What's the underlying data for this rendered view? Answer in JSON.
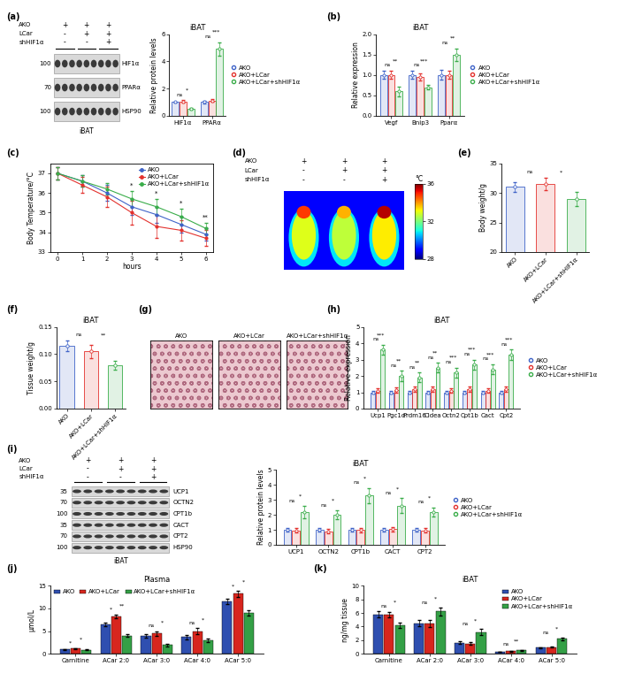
{
  "chart_data": [
    {
      "type": "blot",
      "panel": "(a)",
      "conditions": [
        {
          "name": "AKO",
          "signs": [
            "+",
            "+",
            "+"
          ]
        },
        {
          "name": "LCar",
          "signs": [
            "-",
            "+",
            "+"
          ]
        },
        {
          "name": "shHIF1α",
          "signs": [
            "-",
            "-",
            "+"
          ]
        }
      ],
      "bands": [
        {
          "name": "HIF1α",
          "kDa": 100
        },
        {
          "name": "PPARα",
          "kDa": 70
        },
        {
          "name": "HSP90",
          "kDa": 100
        }
      ],
      "caption": "iBAT"
    },
    {
      "type": "bar",
      "title": "iBAT",
      "y_label": "Relative protein levels",
      "marker": "o",
      "legend": "right",
      "categories": [
        "HIF1α",
        "PPARα"
      ],
      "series": [
        {
          "name": "AKO",
          "color": "#3f63c8",
          "values": [
            1.0,
            1.0
          ],
          "errors": [
            0.05,
            0.08
          ]
        },
        {
          "name": "AKO+LCar",
          "color": "#e3312d",
          "values": [
            1.05,
            1.1
          ],
          "errors": [
            0.08,
            0.1
          ]
        },
        {
          "name": "AKO+LCar+shHIF1α",
          "color": "#3aad4a",
          "values": [
            0.5,
            4.9
          ],
          "errors": [
            0.05,
            0.5
          ]
        }
      ],
      "significance": [
        [
          "ns",
          "*"
        ],
        [
          "ns",
          "***"
        ]
      ],
      "ylim": [
        0,
        6
      ],
      "yticks": [
        0,
        2,
        4,
        6
      ]
    },
    {
      "type": "bar",
      "panel": "(b)",
      "title": "iBAT",
      "y_label": "Relative expression",
      "marker": "o",
      "legend": "right",
      "categories": [
        "Vegf",
        "Bnip3",
        "Pparα"
      ],
      "series": [
        {
          "name": "AKO",
          "color": "#3f63c8",
          "values": [
            1.0,
            1.0,
            1.0
          ],
          "errors": [
            0.1,
            0.1,
            0.12
          ]
        },
        {
          "name": "AKO+LCar",
          "color": "#e3312d",
          "values": [
            1.0,
            0.95,
            1.0
          ],
          "errors": [
            0.1,
            0.08,
            0.1
          ]
        },
        {
          "name": "AKO+LCar+shHIF1α",
          "color": "#3aad4a",
          "values": [
            0.6,
            0.7,
            1.5
          ],
          "errors": [
            0.12,
            0.05,
            0.15
          ]
        }
      ],
      "significance": [
        [
          "ns",
          "**"
        ],
        [
          "ns",
          "***"
        ],
        [
          "ns",
          "**"
        ]
      ],
      "ylim": [
        0,
        2
      ],
      "yticks": [
        {
          "value": 0,
          "label": "0.0"
        },
        0.5,
        {
          "value": 1,
          "label": "1.0"
        },
        1.5,
        {
          "value": 2,
          "label": "2.0"
        }
      ]
    },
    {
      "type": "line",
      "panel": "(c)",
      "x_label": "hours",
      "y_label": "Body Temperature/°C",
      "marker": "o",
      "legend": "upper right",
      "x": [
        0,
        1,
        2,
        3,
        4,
        5,
        6
      ],
      "series": [
        {
          "name": "AKO",
          "color": "#3f63c8",
          "values": [
            37.0,
            36.6,
            36.0,
            35.3,
            34.9,
            34.4,
            33.9
          ],
          "errors": [
            0.3,
            0.3,
            0.4,
            0.4,
            0.4,
            0.4,
            0.3
          ]
        },
        {
          "name": "AKO+LCar",
          "color": "#e3312d",
          "values": [
            37.0,
            36.4,
            35.8,
            35.0,
            34.3,
            34.1,
            33.7
          ],
          "errors": [
            0.3,
            0.4,
            0.5,
            0.6,
            0.6,
            0.5,
            0.4
          ]
        },
        {
          "name": "AKO+LCar+shHIF1α",
          "color": "#3aad4a",
          "values": [
            37.0,
            36.6,
            36.2,
            35.7,
            35.3,
            34.8,
            34.2
          ],
          "errors": [
            0.3,
            0.3,
            0.3,
            0.4,
            0.4,
            0.4,
            0.3
          ]
        }
      ],
      "significance": {
        "x": [
          3,
          4,
          5,
          6
        ],
        "labels": [
          "*",
          "*",
          "*",
          "**"
        ]
      },
      "xlim": [
        0,
        6
      ],
      "xticks": [
        0,
        1,
        2,
        3,
        4,
        5,
        6
      ],
      "ylim": [
        33,
        37.5
      ],
      "yticks": [
        33,
        34,
        35,
        36,
        37
      ]
    },
    {
      "type": "thermal_image",
      "panel": "(d)",
      "conditions": [
        {
          "name": "AKO",
          "signs": [
            "+",
            "+",
            "+"
          ]
        },
        {
          "name": "LCar",
          "signs": [
            "-",
            "+",
            "+"
          ]
        },
        {
          "name": "shHIF1α",
          "signs": [
            "-",
            "-",
            "+"
          ]
        }
      ],
      "colorbar_label": "°C",
      "color_range": [
        28,
        36
      ],
      "color_ticks": [
        28,
        32,
        36
      ]
    },
    {
      "type": "bar",
      "panel": "(e)",
      "y_label": "Body weight/g",
      "marker": "o",
      "categories": [
        "AKO",
        "AKO+LCar",
        "AKO+LCar+shHIF1α"
      ],
      "values": [
        31.0,
        31.5,
        29.0
      ],
      "errors": [
        0.8,
        1.0,
        1.2
      ],
      "colors": [
        "#3f63c8",
        "#e3312d",
        "#3aad4a"
      ],
      "significance": [
        "ns",
        "*"
      ],
      "ylim": [
        20,
        35
      ],
      "yticks": [
        20,
        25,
        30,
        35
      ]
    },
    {
      "type": "bar",
      "panel": "(f)",
      "title": "iBAT",
      "y_label": "Tissue weight/g",
      "marker": "o",
      "categories": [
        "AKO",
        "AKO+LCar",
        "AKO+LCar+shHIF1α"
      ],
      "values": [
        0.115,
        0.105,
        0.08
      ],
      "errors": [
        0.01,
        0.012,
        0.008
      ],
      "colors": [
        "#3f63c8",
        "#e3312d",
        "#3aad4a"
      ],
      "significance": [
        "ns",
        "**"
      ],
      "ylim": [
        0,
        0.15
      ],
      "yticks": [
        {
          "value": 0,
          "label": "0.00"
        },
        0.05,
        {
          "value": 0.1,
          "label": "0.10"
        },
        0.15
      ]
    },
    {
      "type": "histology",
      "panel": "(g)",
      "labels": [
        "AKO",
        "AKO+LCar",
        "AKO+LCar+shHIF1α"
      ]
    },
    {
      "type": "bar",
      "panel": "(h)",
      "title": "iBAT",
      "y_label": "Relative expression",
      "marker": "o",
      "legend": "right",
      "categories": [
        "Ucp1",
        "Pgc1α",
        "Prdm16",
        "Cidea",
        "Octn2",
        "Cpt1b",
        "Cact",
        "Cpt2"
      ],
      "series": [
        {
          "name": "AKO",
          "color": "#3f63c8",
          "values": [
            1.0,
            1.0,
            1.0,
            1.0,
            1.0,
            1.0,
            1.0,
            1.0
          ],
          "errors": [
            0.1,
            0.1,
            0.1,
            0.1,
            0.1,
            0.1,
            0.1,
            0.1
          ]
        },
        {
          "name": "AKO+LCar",
          "color": "#e3312d",
          "values": [
            1.1,
            1.15,
            1.2,
            1.2,
            1.1,
            1.2,
            1.1,
            1.2
          ],
          "errors": [
            0.15,
            0.15,
            0.15,
            0.15,
            0.15,
            0.15,
            0.15,
            0.15
          ]
        },
        {
          "name": "AKO+LCar+shHIF1α",
          "color": "#3aad4a",
          "values": [
            3.6,
            2.0,
            1.9,
            2.5,
            2.2,
            2.7,
            2.4,
            3.3
          ],
          "errors": [
            0.3,
            0.3,
            0.3,
            0.3,
            0.3,
            0.3,
            0.3,
            0.3
          ]
        }
      ],
      "significance": [
        [
          "ns",
          "***"
        ],
        [
          "ns",
          "**"
        ],
        [
          "ns",
          "**"
        ],
        [
          "ns",
          "**"
        ],
        [
          "ns",
          "***"
        ],
        [
          "ns",
          "***"
        ],
        [
          "ns",
          "***"
        ],
        [
          "ns",
          "***"
        ]
      ],
      "ylim": [
        0,
        5
      ],
      "yticks": [
        0,
        1,
        2,
        3,
        4,
        5
      ]
    },
    {
      "type": "blot",
      "panel": "(i)",
      "conditions": [
        {
          "name": "AKO",
          "signs": [
            "+",
            "+",
            "+"
          ]
        },
        {
          "name": "LCar",
          "signs": [
            "-",
            "+",
            "+"
          ]
        },
        {
          "name": "shHIF1α",
          "signs": [
            "-",
            "-",
            "+"
          ]
        }
      ],
      "bands": [
        {
          "name": "UCP1",
          "kDa": 35
        },
        {
          "name": "OCTN2",
          "kDa": 70
        },
        {
          "name": "CPT1b",
          "kDa": 100
        },
        {
          "name": "CACT",
          "kDa": 35
        },
        {
          "name": "CPT2",
          "kDa": 70
        },
        {
          "name": "HSP90",
          "kDa": 100
        }
      ],
      "caption": "iBAT"
    },
    {
      "type": "bar",
      "title": "iBAT",
      "y_label": "Relative protein levels",
      "marker": "o",
      "legend": "right",
      "categories": [
        "UCP1",
        "OCTN2",
        "CPT1b",
        "CACT",
        "CPT2"
      ],
      "series": [
        {
          "name": "AKO",
          "color": "#3f63c8",
          "values": [
            1.0,
            1.0,
            1.0,
            1.0,
            1.0
          ],
          "errors": [
            0.1,
            0.1,
            0.1,
            0.1,
            0.1
          ]
        },
        {
          "name": "AKO+LCar",
          "color": "#e3312d",
          "values": [
            0.95,
            0.9,
            1.0,
            1.05,
            0.95
          ],
          "errors": [
            0.15,
            0.15,
            0.15,
            0.15,
            0.15
          ]
        },
        {
          "name": "AKO+LCar+shHIF1α",
          "color": "#3aad4a",
          "values": [
            2.2,
            2.0,
            3.3,
            2.6,
            2.2
          ],
          "errors": [
            0.4,
            0.3,
            0.5,
            0.5,
            0.3
          ]
        }
      ],
      "significance": [
        [
          "ns",
          "*"
        ],
        [
          "ns",
          "*"
        ],
        [
          "ns",
          "*"
        ],
        [
          "ns",
          "*"
        ],
        [
          "ns",
          "*"
        ]
      ],
      "ylim": [
        0,
        5
      ],
      "yticks": [
        0,
        1,
        2,
        3,
        4,
        5
      ]
    },
    {
      "type": "bar",
      "panel": "(j)",
      "title": "Plasma",
      "y_label": "μmol/L",
      "legend": "upper left",
      "categories": [
        "Carnitine",
        "ACar 2:0",
        "ACar 3:0",
        "ACar 4:0",
        "ACar 5:0"
      ],
      "series": [
        {
          "name": "AKO",
          "color": "#2f4fb0",
          "values": [
            1.0,
            6.5,
            3.9,
            3.7,
            11.5
          ],
          "errors": [
            0.1,
            0.4,
            0.4,
            0.5,
            0.6
          ]
        },
        {
          "name": "AKO+LCar",
          "color": "#d7261e",
          "values": [
            1.2,
            8.2,
            4.5,
            5.0,
            13.2
          ],
          "errors": [
            0.1,
            0.4,
            0.5,
            0.6,
            0.6
          ]
        },
        {
          "name": "AKO+LCar+shHIF1α",
          "color": "#34a046",
          "values": [
            0.9,
            4.0,
            1.9,
            3.0,
            9.0
          ],
          "errors": [
            0.1,
            0.3,
            0.3,
            0.4,
            0.6
          ]
        }
      ],
      "significance": [
        [
          "*",
          "*"
        ],
        [
          "*",
          "**"
        ],
        [
          "ns",
          "*"
        ],
        [
          "ns",
          "*"
        ],
        [
          "*",
          "*"
        ]
      ],
      "ylim": [
        0,
        15
      ],
      "yticks": [
        0,
        5,
        10,
        15
      ]
    },
    {
      "type": "bar",
      "panel": "(k)",
      "title": "iBAT",
      "y_label": "ng/mg tissue",
      "legend": "upper right",
      "categories": [
        "Carnitine",
        "ACar 2:0",
        "ACar 3:0",
        "ACar 4:0",
        "ACar 5:0"
      ],
      "series": [
        {
          "name": "AKO",
          "color": "#2f4fb0",
          "values": [
            5.8,
            4.5,
            1.6,
            0.3,
            0.9
          ],
          "errors": [
            0.5,
            0.4,
            0.2,
            0.05,
            0.1
          ]
        },
        {
          "name": "AKO+LCar",
          "color": "#d7261e",
          "values": [
            5.7,
            4.4,
            1.5,
            0.4,
            1.0
          ],
          "errors": [
            0.4,
            0.5,
            0.2,
            0.05,
            0.1
          ]
        },
        {
          "name": "AKO+LCar+shHIF1α",
          "color": "#34a046",
          "values": [
            4.2,
            6.2,
            3.2,
            0.5,
            2.2
          ],
          "errors": [
            0.4,
            0.6,
            0.4,
            0.1,
            0.2
          ]
        }
      ],
      "significance": [
        [
          "ns",
          "*"
        ],
        [
          "ns",
          "*"
        ],
        [
          "ns",
          "*"
        ],
        [
          "ns",
          "**"
        ],
        [
          "ns",
          "*"
        ]
      ],
      "ylim": [
        0,
        10
      ],
      "yticks": [
        0,
        2,
        4,
        6,
        8,
        10
      ]
    }
  ]
}
